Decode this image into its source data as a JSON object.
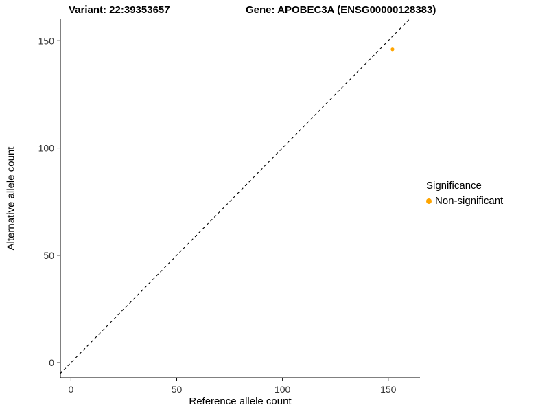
{
  "chart_data": {
    "type": "scatter",
    "title_left": "Variant: 22:39353657",
    "title_right": "Gene: APOBEC3A (ENSG00000128383)",
    "xlabel": "Reference allele count",
    "ylabel": "Alternative allele count",
    "xlim": [
      -5,
      165
    ],
    "ylim": [
      -7,
      160
    ],
    "xticks": [
      0,
      50,
      100,
      150
    ],
    "yticks": [
      0,
      50,
      100,
      150
    ],
    "grid": false,
    "points": [
      {
        "x": 152,
        "y": 146,
        "series": "Non-significant"
      }
    ],
    "identity_line": {
      "style": "dashed",
      "from": [
        -7,
        -7
      ],
      "to": [
        163,
        163
      ]
    },
    "legend": {
      "position": "right",
      "title": "Significance",
      "entries": [
        {
          "label": "Non-significant",
          "color": "#FFA500"
        }
      ]
    },
    "axis_color": "#000000",
    "tick_label_color": "#333333"
  }
}
